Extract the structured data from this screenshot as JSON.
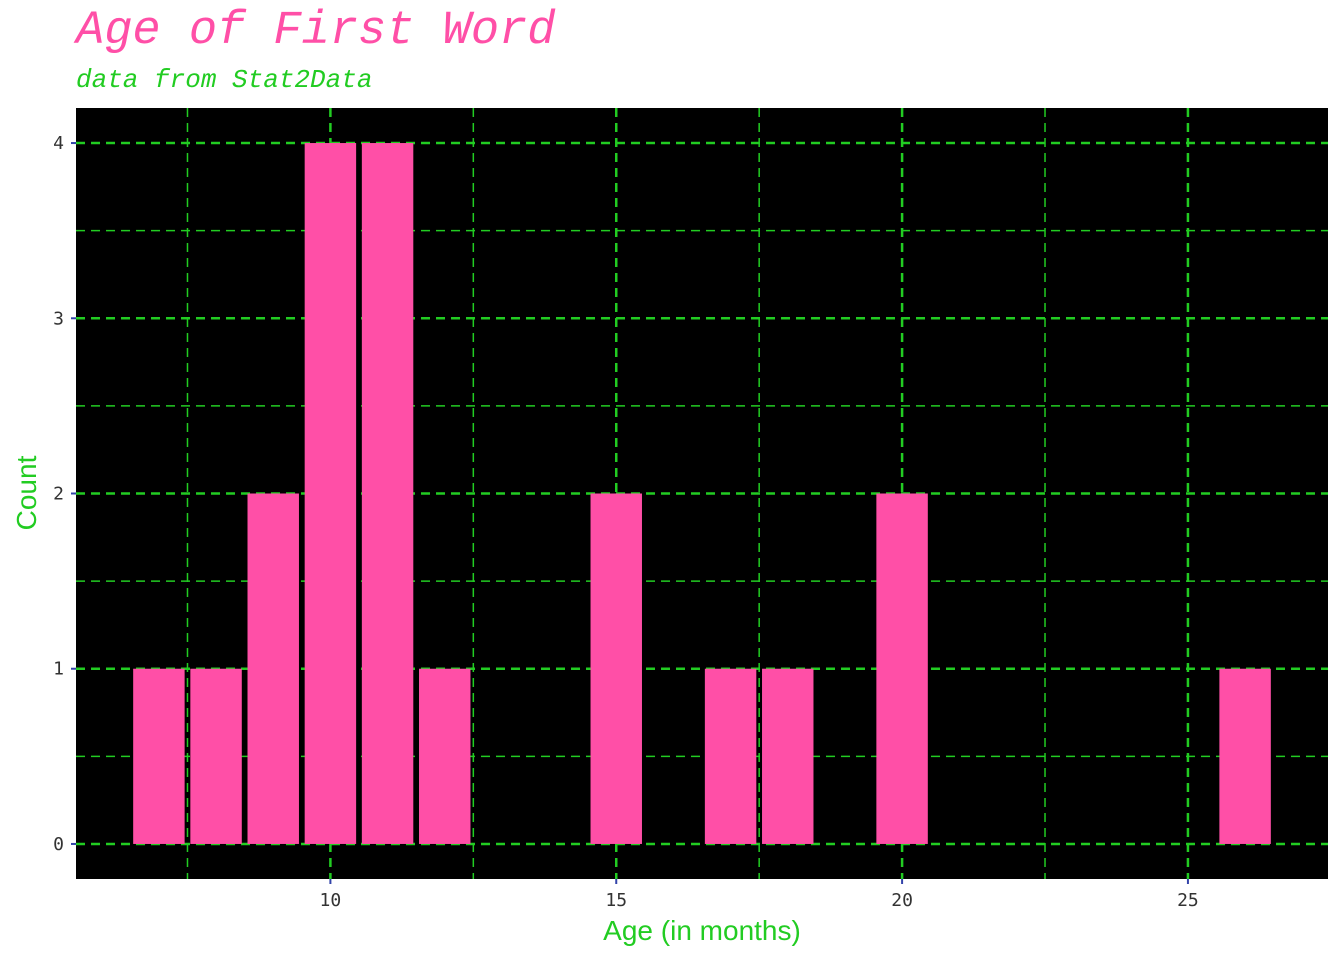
{
  "chart_data": {
    "type": "bar",
    "title": "Age of First Word",
    "subtitle": "data from Stat2Data",
    "xlabel": "Age (in months)",
    "ylabel": "Count",
    "x": [
      7,
      8,
      9,
      10,
      11,
      12,
      15,
      17,
      18,
      20,
      26
    ],
    "values": [
      1,
      1,
      2,
      4,
      4,
      1,
      2,
      1,
      1,
      2,
      1
    ],
    "xlim": [
      5.55,
      27.45
    ],
    "ylim": [
      -0.2,
      4.2
    ],
    "x_ticks": [
      10,
      15,
      20,
      25
    ],
    "y_ticks": [
      0,
      1,
      2,
      3,
      4
    ],
    "x_minor_ticks": [
      7.5,
      12.5,
      17.5,
      22.5
    ],
    "y_minor_ticks": [
      0.5,
      1.5,
      2.5,
      3.5
    ],
    "grid": true,
    "grid_style": "dashed",
    "colors": {
      "bar": "#ff4fa7",
      "panel": "#000000",
      "grid": "#22cc22",
      "title": "#ff4fa7",
      "subtitle": "#22cc22",
      "axis_title": "#22cc22",
      "tick_mark": "#3344aa"
    }
  }
}
